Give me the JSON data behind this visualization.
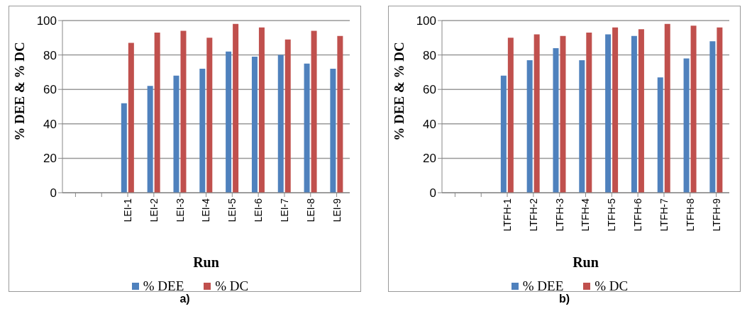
{
  "chart_data": [
    {
      "type": "bar",
      "xlabel": "Run",
      "ylabel": "% DEE & % DC",
      "annotations": [
        "a)"
      ],
      "categories": [
        null,
        null,
        "LEI-1",
        "LEI-2",
        "LEI-3",
        "LEI-4",
        "LEI-5",
        "LEI-6",
        "LEI-7",
        "LEI-8",
        "LEI-9"
      ],
      "series": [
        {
          "name": "% DEE",
          "color": "#4f81bd",
          "values": [
            null,
            null,
            52,
            62,
            68,
            72,
            82,
            79,
            80,
            75,
            72
          ]
        },
        {
          "name": "% DC",
          "color": "#c0504d",
          "values": [
            null,
            null,
            87,
            93,
            94,
            90,
            98,
            96,
            89,
            94,
            91
          ]
        }
      ],
      "ylim": [
        0,
        100
      ],
      "yticks": [
        0,
        20,
        40,
        60,
        80,
        100
      ],
      "grid": "y",
      "legend": "bottom"
    },
    {
      "type": "bar",
      "xlabel": "Run",
      "ylabel": "% DEE & % DC",
      "annotations": [
        "b)"
      ],
      "categories": [
        null,
        null,
        "LTFH-1",
        "LTFH-2",
        "LTFH-3",
        "LTFH-4",
        "LTFH-5",
        "LTFH-6",
        "LTFH-7",
        "LTFH-8",
        "LTFH-9"
      ],
      "series": [
        {
          "name": "% DEE",
          "color": "#4f81bd",
          "values": [
            null,
            null,
            68,
            77,
            84,
            77,
            92,
            91,
            67,
            78,
            88
          ]
        },
        {
          "name": "% DC",
          "color": "#c0504d",
          "values": [
            null,
            null,
            90,
            92,
            91,
            93,
            96,
            95,
            98,
            97,
            96
          ]
        }
      ],
      "ylim": [
        0,
        100
      ],
      "yticks": [
        0,
        20,
        40,
        60,
        80,
        100
      ],
      "grid": "y",
      "legend": "bottom"
    }
  ]
}
